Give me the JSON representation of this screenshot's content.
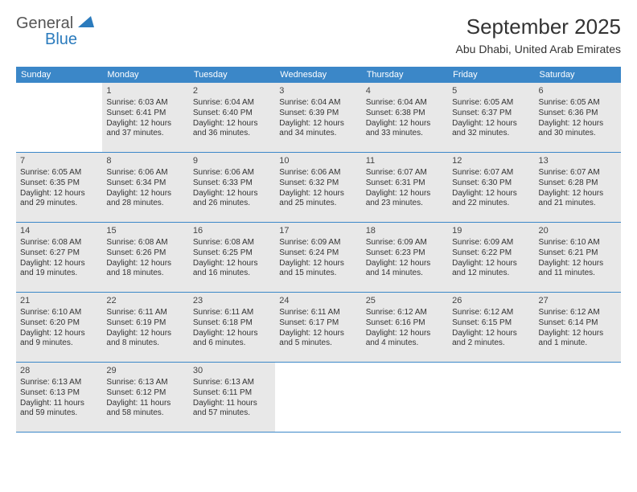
{
  "logo": {
    "text1": "General",
    "text2": "Blue"
  },
  "title": "September 2025",
  "location": "Abu Dhabi, United Arab Emirates",
  "colors": {
    "header_bg": "#3b87c8",
    "header_text": "#ffffff",
    "shaded_bg": "#e8e8e8",
    "text": "#333333",
    "logo_gray": "#555555",
    "logo_blue": "#2b7bbd",
    "row_border": "#3b87c8",
    "page_bg": "#ffffff"
  },
  "typography": {
    "title_fontsize": 26,
    "location_fontsize": 14,
    "dayheader_fontsize": 11,
    "daynum_fontsize": 11,
    "body_fontsize": 10
  },
  "day_headers": [
    "Sunday",
    "Monday",
    "Tuesday",
    "Wednesday",
    "Thursday",
    "Friday",
    "Saturday"
  ],
  "weeks": [
    [
      {
        "empty": true
      },
      {
        "num": "1",
        "sunrise": "Sunrise: 6:03 AM",
        "sunset": "Sunset: 6:41 PM",
        "day1": "Daylight: 12 hours",
        "day2": "and 37 minutes."
      },
      {
        "num": "2",
        "sunrise": "Sunrise: 6:04 AM",
        "sunset": "Sunset: 6:40 PM",
        "day1": "Daylight: 12 hours",
        "day2": "and 36 minutes."
      },
      {
        "num": "3",
        "sunrise": "Sunrise: 6:04 AM",
        "sunset": "Sunset: 6:39 PM",
        "day1": "Daylight: 12 hours",
        "day2": "and 34 minutes."
      },
      {
        "num": "4",
        "sunrise": "Sunrise: 6:04 AM",
        "sunset": "Sunset: 6:38 PM",
        "day1": "Daylight: 12 hours",
        "day2": "and 33 minutes."
      },
      {
        "num": "5",
        "sunrise": "Sunrise: 6:05 AM",
        "sunset": "Sunset: 6:37 PM",
        "day1": "Daylight: 12 hours",
        "day2": "and 32 minutes."
      },
      {
        "num": "6",
        "sunrise": "Sunrise: 6:05 AM",
        "sunset": "Sunset: 6:36 PM",
        "day1": "Daylight: 12 hours",
        "day2": "and 30 minutes."
      }
    ],
    [
      {
        "num": "7",
        "sunrise": "Sunrise: 6:05 AM",
        "sunset": "Sunset: 6:35 PM",
        "day1": "Daylight: 12 hours",
        "day2": "and 29 minutes."
      },
      {
        "num": "8",
        "sunrise": "Sunrise: 6:06 AM",
        "sunset": "Sunset: 6:34 PM",
        "day1": "Daylight: 12 hours",
        "day2": "and 28 minutes."
      },
      {
        "num": "9",
        "sunrise": "Sunrise: 6:06 AM",
        "sunset": "Sunset: 6:33 PM",
        "day1": "Daylight: 12 hours",
        "day2": "and 26 minutes."
      },
      {
        "num": "10",
        "sunrise": "Sunrise: 6:06 AM",
        "sunset": "Sunset: 6:32 PM",
        "day1": "Daylight: 12 hours",
        "day2": "and 25 minutes."
      },
      {
        "num": "11",
        "sunrise": "Sunrise: 6:07 AM",
        "sunset": "Sunset: 6:31 PM",
        "day1": "Daylight: 12 hours",
        "day2": "and 23 minutes."
      },
      {
        "num": "12",
        "sunrise": "Sunrise: 6:07 AM",
        "sunset": "Sunset: 6:30 PM",
        "day1": "Daylight: 12 hours",
        "day2": "and 22 minutes."
      },
      {
        "num": "13",
        "sunrise": "Sunrise: 6:07 AM",
        "sunset": "Sunset: 6:28 PM",
        "day1": "Daylight: 12 hours",
        "day2": "and 21 minutes."
      }
    ],
    [
      {
        "num": "14",
        "sunrise": "Sunrise: 6:08 AM",
        "sunset": "Sunset: 6:27 PM",
        "day1": "Daylight: 12 hours",
        "day2": "and 19 minutes."
      },
      {
        "num": "15",
        "sunrise": "Sunrise: 6:08 AM",
        "sunset": "Sunset: 6:26 PM",
        "day1": "Daylight: 12 hours",
        "day2": "and 18 minutes."
      },
      {
        "num": "16",
        "sunrise": "Sunrise: 6:08 AM",
        "sunset": "Sunset: 6:25 PM",
        "day1": "Daylight: 12 hours",
        "day2": "and 16 minutes."
      },
      {
        "num": "17",
        "sunrise": "Sunrise: 6:09 AM",
        "sunset": "Sunset: 6:24 PM",
        "day1": "Daylight: 12 hours",
        "day2": "and 15 minutes."
      },
      {
        "num": "18",
        "sunrise": "Sunrise: 6:09 AM",
        "sunset": "Sunset: 6:23 PM",
        "day1": "Daylight: 12 hours",
        "day2": "and 14 minutes."
      },
      {
        "num": "19",
        "sunrise": "Sunrise: 6:09 AM",
        "sunset": "Sunset: 6:22 PM",
        "day1": "Daylight: 12 hours",
        "day2": "and 12 minutes."
      },
      {
        "num": "20",
        "sunrise": "Sunrise: 6:10 AM",
        "sunset": "Sunset: 6:21 PM",
        "day1": "Daylight: 12 hours",
        "day2": "and 11 minutes."
      }
    ],
    [
      {
        "num": "21",
        "sunrise": "Sunrise: 6:10 AM",
        "sunset": "Sunset: 6:20 PM",
        "day1": "Daylight: 12 hours",
        "day2": "and 9 minutes."
      },
      {
        "num": "22",
        "sunrise": "Sunrise: 6:11 AM",
        "sunset": "Sunset: 6:19 PM",
        "day1": "Daylight: 12 hours",
        "day2": "and 8 minutes."
      },
      {
        "num": "23",
        "sunrise": "Sunrise: 6:11 AM",
        "sunset": "Sunset: 6:18 PM",
        "day1": "Daylight: 12 hours",
        "day2": "and 6 minutes."
      },
      {
        "num": "24",
        "sunrise": "Sunrise: 6:11 AM",
        "sunset": "Sunset: 6:17 PM",
        "day1": "Daylight: 12 hours",
        "day2": "and 5 minutes."
      },
      {
        "num": "25",
        "sunrise": "Sunrise: 6:12 AM",
        "sunset": "Sunset: 6:16 PM",
        "day1": "Daylight: 12 hours",
        "day2": "and 4 minutes."
      },
      {
        "num": "26",
        "sunrise": "Sunrise: 6:12 AM",
        "sunset": "Sunset: 6:15 PM",
        "day1": "Daylight: 12 hours",
        "day2": "and 2 minutes."
      },
      {
        "num": "27",
        "sunrise": "Sunrise: 6:12 AM",
        "sunset": "Sunset: 6:14 PM",
        "day1": "Daylight: 12 hours",
        "day2": "and 1 minute."
      }
    ],
    [
      {
        "num": "28",
        "sunrise": "Sunrise: 6:13 AM",
        "sunset": "Sunset: 6:13 PM",
        "day1": "Daylight: 11 hours",
        "day2": "and 59 minutes."
      },
      {
        "num": "29",
        "sunrise": "Sunrise: 6:13 AM",
        "sunset": "Sunset: 6:12 PM",
        "day1": "Daylight: 11 hours",
        "day2": "and 58 minutes."
      },
      {
        "num": "30",
        "sunrise": "Sunrise: 6:13 AM",
        "sunset": "Sunset: 6:11 PM",
        "day1": "Daylight: 11 hours",
        "day2": "and 57 minutes."
      },
      {
        "empty": true
      },
      {
        "empty": true
      },
      {
        "empty": true
      },
      {
        "empty": true
      }
    ]
  ]
}
